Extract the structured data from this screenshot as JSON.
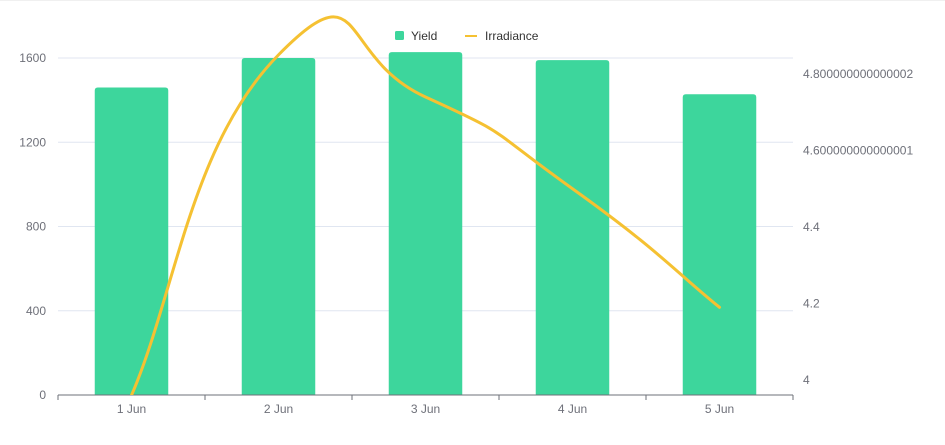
{
  "chart_data": {
    "type": "bar",
    "categories": [
      "1 Jun",
      "2 Jun",
      "3 Jun",
      "4 Jun",
      "5 Jun"
    ],
    "series": [
      {
        "name": "Yield",
        "type": "bar",
        "axis": "left",
        "color": "#3dd69c",
        "values": [
          1460,
          1600,
          1628,
          1590,
          1428
        ]
      },
      {
        "name": "Irradiance",
        "type": "line",
        "smooth": true,
        "axis": "right",
        "color": "#f5c132",
        "values": [
          3.96,
          4.85,
          4.74,
          4.5,
          4.19
        ]
      }
    ],
    "y_left": {
      "min": 0,
      "max": 1600,
      "ticks": [
        {
          "value": 0,
          "label": "0"
        },
        {
          "value": 400,
          "label": "400"
        },
        {
          "value": 800,
          "label": "800"
        },
        {
          "value": 1200,
          "label": "1200"
        },
        {
          "value": 1600,
          "label": "1600"
        }
      ]
    },
    "y_right": {
      "min": 4,
      "max": 4.8,
      "ticks": [
        {
          "value": 4,
          "label": "4"
        },
        {
          "value": 4.2,
          "label": "4.2"
        },
        {
          "value": 4.4,
          "label": "4.4"
        },
        {
          "value": 4.6,
          "label": "4.600000000000001"
        },
        {
          "value": 4.8,
          "label": "4.800000000000002"
        }
      ]
    },
    "grid": true,
    "legend_position": "top-center",
    "legend": [
      {
        "name": "Yield",
        "marker": "square",
        "color": "#3dd69c"
      },
      {
        "name": "Irradiance",
        "marker": "line",
        "color": "#f5c132"
      }
    ]
  }
}
